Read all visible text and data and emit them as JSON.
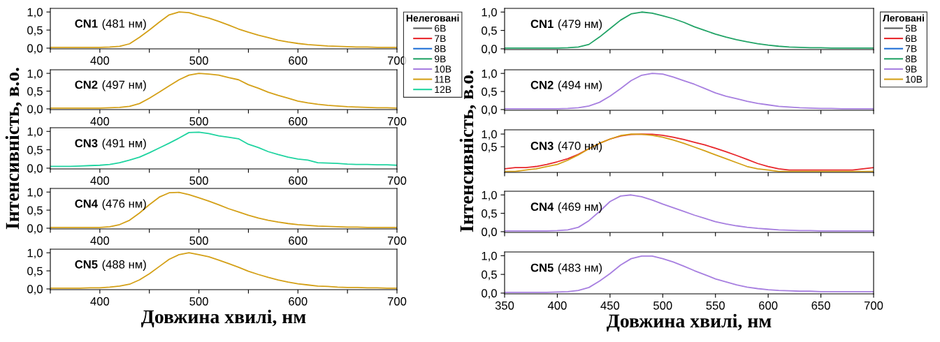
{
  "chart_data": [
    {
      "type": "line",
      "title": "CN1",
      "subtitle": "(481 нм)",
      "legend": "right",
      "legend_title": "Нелеговані",
      "xlim": [
        350,
        700
      ],
      "ylim": [
        -0.02,
        1.1
      ],
      "xticks": [
        400,
        500,
        600,
        700,
        {
          "value": 350,
          "label": null
        },
        {
          "value": 450,
          "label": null
        },
        {
          "value": 550,
          "label": null
        },
        {
          "value": 650,
          "label": null
        }
      ],
      "yticks": [
        {
          "value": 0,
          "label": "0,0"
        },
        {
          "value": 0.5,
          "label": "0,5"
        },
        {
          "value": 1,
          "label": "1,0"
        }
      ],
      "x": [
        350,
        360,
        370,
        380,
        390,
        400,
        410,
        420,
        430,
        440,
        450,
        460,
        470,
        480,
        490,
        500,
        510,
        520,
        530,
        540,
        550,
        560,
        570,
        580,
        590,
        600,
        610,
        620,
        630,
        640,
        650,
        660,
        670,
        680,
        690,
        700
      ],
      "series": [
        {
          "name": "6В",
          "color": "#595959",
          "values": [
            null,
            null,
            null,
            null,
            null,
            null,
            null,
            null,
            null,
            null,
            null,
            null,
            null,
            null,
            null,
            null,
            null,
            null,
            null,
            null,
            null,
            null,
            null,
            null,
            null,
            null,
            null,
            null,
            null,
            null,
            null,
            null,
            null,
            null,
            null,
            null
          ]
        },
        {
          "name": "7В",
          "color": "#e8262b",
          "values": [
            null,
            null,
            null,
            null,
            null,
            null,
            null,
            null,
            null,
            null,
            null,
            null,
            null,
            null,
            null,
            null,
            null,
            null,
            null,
            null,
            null,
            null,
            null,
            null,
            null,
            null,
            null,
            null,
            null,
            null,
            null,
            null,
            null,
            null,
            null,
            null
          ]
        },
        {
          "name": "8В",
          "color": "#1f6fd6",
          "values": [
            null,
            null,
            null,
            null,
            null,
            null,
            null,
            null,
            null,
            null,
            null,
            null,
            null,
            null,
            null,
            null,
            null,
            null,
            null,
            null,
            null,
            null,
            null,
            null,
            null,
            null,
            null,
            null,
            null,
            null,
            null,
            null,
            null,
            null,
            null,
            null
          ]
        },
        {
          "name": "9В",
          "color": "#21a366",
          "values": [
            null,
            null,
            null,
            null,
            null,
            null,
            null,
            null,
            null,
            null,
            null,
            null,
            null,
            null,
            null,
            null,
            null,
            null,
            null,
            null,
            null,
            null,
            null,
            null,
            null,
            null,
            null,
            null,
            null,
            null,
            null,
            null,
            null,
            null,
            null,
            null
          ]
        },
        {
          "name": "10В",
          "color": "#a77fe0",
          "values": [
            null,
            null,
            null,
            null,
            null,
            null,
            null,
            null,
            null,
            null,
            null,
            null,
            null,
            null,
            null,
            null,
            null,
            null,
            null,
            null,
            null,
            null,
            null,
            null,
            null,
            null,
            null,
            null,
            null,
            null,
            null,
            null,
            null,
            null,
            null,
            null
          ]
        },
        {
          "name": "11В",
          "color": "#d4a017",
          "values": [
            0.02,
            0.02,
            0.02,
            0.02,
            0.02,
            0.02,
            0.03,
            0.05,
            0.12,
            0.3,
            0.5,
            0.72,
            0.92,
            1.0,
            0.98,
            0.9,
            0.83,
            0.74,
            0.64,
            0.53,
            0.44,
            0.36,
            0.29,
            0.22,
            0.17,
            0.13,
            0.1,
            0.08,
            0.06,
            0.05,
            0.04,
            0.03,
            0.03,
            0.02,
            0.02,
            0.02
          ]
        },
        {
          "name": "12В",
          "color": "#1fd4a0",
          "values": [
            null,
            null,
            null,
            null,
            null,
            null,
            null,
            null,
            null,
            null,
            null,
            null,
            null,
            null,
            null,
            null,
            null,
            null,
            null,
            null,
            null,
            null,
            null,
            null,
            null,
            null,
            null,
            null,
            null,
            null,
            null,
            null,
            null,
            null,
            null,
            null
          ]
        }
      ]
    },
    {
      "type": "line",
      "title": "CN1",
      "subtitle": "(479 нм)",
      "legend": "right",
      "legend_title": "Леговані",
      "tick_labels": "y",
      "xlim": [
        350,
        700
      ],
      "ylim": [
        -0.02,
        1.1
      ],
      "xticks": [
        350,
        400,
        450,
        500,
        550,
        600,
        650,
        700
      ],
      "yticks": [
        {
          "value": 0,
          "label": "0,0"
        },
        {
          "value": 0.5,
          "label": "0,5"
        },
        {
          "value": 1,
          "label": "1,0"
        }
      ],
      "x": [
        350,
        360,
        370,
        380,
        390,
        400,
        410,
        420,
        430,
        440,
        450,
        460,
        470,
        480,
        490,
        500,
        510,
        520,
        530,
        540,
        550,
        560,
        570,
        580,
        590,
        600,
        610,
        620,
        630,
        640,
        650,
        660,
        670,
        680,
        690,
        700
      ],
      "series": [
        {
          "name": "5В",
          "color": "#595959",
          "values": [
            null,
            null,
            null,
            null,
            null,
            null,
            null,
            null,
            null,
            null,
            null,
            null,
            null,
            null,
            null,
            null,
            null,
            null,
            null,
            null,
            null,
            null,
            null,
            null,
            null,
            null,
            null,
            null,
            null,
            null,
            null,
            null,
            null,
            null,
            null,
            null
          ]
        },
        {
          "name": "6В",
          "color": "#e8262b",
          "values": [
            null,
            null,
            null,
            null,
            null,
            null,
            null,
            null,
            null,
            null,
            null,
            null,
            null,
            null,
            null,
            null,
            null,
            null,
            null,
            null,
            null,
            null,
            null,
            null,
            null,
            null,
            null,
            null,
            null,
            null,
            null,
            null,
            null,
            null,
            null,
            null
          ]
        },
        {
          "name": "7В",
          "color": "#1f6fd6",
          "values": [
            null,
            null,
            null,
            null,
            null,
            null,
            null,
            null,
            null,
            null,
            null,
            null,
            null,
            null,
            null,
            null,
            null,
            null,
            null,
            null,
            null,
            null,
            null,
            null,
            null,
            null,
            null,
            null,
            null,
            null,
            null,
            null,
            null,
            null,
            null,
            null
          ]
        },
        {
          "name": "8В",
          "color": "#21a366",
          "values": [
            0.02,
            0.02,
            0.02,
            0.02,
            0.02,
            0.02,
            0.03,
            0.05,
            0.12,
            0.32,
            0.55,
            0.78,
            0.95,
            1.0,
            0.97,
            0.9,
            0.82,
            0.72,
            0.6,
            0.5,
            0.4,
            0.32,
            0.25,
            0.19,
            0.14,
            0.1,
            0.07,
            0.05,
            0.04,
            0.03,
            0.03,
            0.02,
            0.02,
            0.02,
            0.02,
            0.02
          ]
        },
        {
          "name": "9В",
          "color": "#a77fe0",
          "values": [
            null,
            null,
            null,
            null,
            null,
            null,
            null,
            null,
            null,
            null,
            null,
            null,
            null,
            null,
            null,
            null,
            null,
            null,
            null,
            null,
            null,
            null,
            null,
            null,
            null,
            null,
            null,
            null,
            null,
            null,
            null,
            null,
            null,
            null,
            null,
            null
          ]
        },
        {
          "name": "10В",
          "color": "#d4a017",
          "values": [
            null,
            null,
            null,
            null,
            null,
            null,
            null,
            null,
            null,
            null,
            null,
            null,
            null,
            null,
            null,
            null,
            null,
            null,
            null,
            null,
            null,
            null,
            null,
            null,
            null,
            null,
            null,
            null,
            null,
            null,
            null,
            null,
            null,
            null,
            null,
            null
          ]
        }
      ]
    },
    {
      "type": "line",
      "title": "CN2",
      "subtitle": "(497 нм)",
      "xlim": [
        350,
        700
      ],
      "ylim": [
        -0.02,
        1.1
      ],
      "xticks": [
        400,
        500,
        600,
        700,
        {
          "value": 350,
          "label": null
        },
        {
          "value": 450,
          "label": null
        },
        {
          "value": 550,
          "label": null
        },
        {
          "value": 650,
          "label": null
        }
      ],
      "yticks": [
        {
          "value": 0,
          "label": "0,0"
        },
        {
          "value": 0.5,
          "label": "0,5"
        },
        {
          "value": 1,
          "label": "1,0"
        }
      ],
      "x": [
        350,
        360,
        370,
        380,
        390,
        400,
        410,
        420,
        430,
        440,
        450,
        460,
        470,
        480,
        490,
        500,
        510,
        520,
        530,
        540,
        550,
        560,
        570,
        580,
        590,
        600,
        610,
        620,
        630,
        640,
        650,
        660,
        670,
        680,
        690,
        700
      ],
      "series": [
        {
          "color": "#d4a017",
          "values": [
            0.02,
            0.02,
            0.02,
            0.02,
            0.02,
            0.02,
            0.03,
            0.04,
            0.07,
            0.15,
            0.3,
            0.47,
            0.65,
            0.82,
            0.95,
            1.0,
            0.98,
            0.95,
            0.88,
            0.82,
            0.68,
            0.58,
            0.47,
            0.38,
            0.3,
            0.22,
            0.17,
            0.13,
            0.1,
            0.08,
            0.06,
            0.05,
            0.04,
            0.03,
            0.03,
            0.02
          ]
        }
      ]
    },
    {
      "type": "line",
      "title": "CN2",
      "subtitle": "(494 нм)",
      "tick_labels": "y",
      "xlim": [
        350,
        700
      ],
      "ylim": [
        -0.02,
        1.1
      ],
      "xticks": [
        350,
        400,
        450,
        500,
        550,
        600,
        650,
        700
      ],
      "yticks": [
        {
          "value": 0,
          "label": "0,0"
        },
        {
          "value": 0.5,
          "label": "0,5"
        },
        {
          "value": 1,
          "label": "1,0"
        }
      ],
      "x": [
        350,
        360,
        370,
        380,
        390,
        400,
        410,
        420,
        430,
        440,
        450,
        460,
        470,
        480,
        490,
        500,
        510,
        520,
        530,
        540,
        550,
        560,
        570,
        580,
        590,
        600,
        610,
        620,
        630,
        640,
        650,
        660,
        670,
        680,
        690,
        700
      ],
      "series": [
        {
          "color": "#a77fe0",
          "values": [
            0.02,
            0.02,
            0.02,
            0.02,
            0.02,
            0.02,
            0.03,
            0.05,
            0.1,
            0.2,
            0.37,
            0.58,
            0.8,
            0.95,
            1.0,
            0.98,
            0.9,
            0.8,
            0.7,
            0.58,
            0.46,
            0.37,
            0.3,
            0.23,
            0.17,
            0.13,
            0.09,
            0.07,
            0.05,
            0.04,
            0.03,
            0.03,
            0.02,
            0.02,
            0.02,
            0.02
          ]
        }
      ]
    },
    {
      "type": "line",
      "title": "CN3",
      "subtitle": "(491 нм)",
      "ylabel": "Інтенсивність, в.о.",
      "xlim": [
        350,
        700
      ],
      "ylim": [
        -0.02,
        1.1
      ],
      "xticks": [
        400,
        500,
        600,
        700,
        {
          "value": 350,
          "label": null
        },
        {
          "value": 450,
          "label": null
        },
        {
          "value": 550,
          "label": null
        },
        {
          "value": 650,
          "label": null
        }
      ],
      "yticks": [
        {
          "value": 0,
          "label": "0,0"
        },
        {
          "value": 0.5,
          "label": "0,5"
        },
        {
          "value": 1,
          "label": "1,0"
        }
      ],
      "x": [
        350,
        360,
        370,
        380,
        390,
        400,
        410,
        420,
        430,
        440,
        450,
        460,
        470,
        480,
        490,
        500,
        510,
        520,
        530,
        540,
        550,
        560,
        570,
        580,
        590,
        600,
        610,
        620,
        630,
        640,
        650,
        660,
        670,
        680,
        690,
        700
      ],
      "series": [
        {
          "color": "#1fd4a0",
          "values": [
            0.05,
            0.05,
            0.05,
            0.06,
            0.07,
            0.08,
            0.1,
            0.15,
            0.22,
            0.3,
            0.42,
            0.55,
            0.68,
            0.82,
            0.97,
            0.98,
            0.94,
            0.88,
            0.84,
            0.8,
            0.65,
            0.56,
            0.45,
            0.37,
            0.3,
            0.25,
            0.22,
            0.15,
            0.14,
            0.13,
            0.11,
            0.1,
            0.1,
            0.09,
            0.09,
            0.08
          ]
        }
      ]
    },
    {
      "type": "line",
      "title": "CN3",
      "subtitle": "(470 нм)",
      "ylabel": "Інтенсивність, в.о.",
      "log": "y",
      "tick_labels": "y",
      "xlim": [
        350,
        700
      ],
      "ylim": [
        0.123,
        1.26
      ],
      "xticks": [
        350,
        400,
        450,
        500,
        550,
        600,
        650,
        700
      ],
      "yticks": [
        {
          "value": 0.5,
          "label": "0,5"
        },
        {
          "value": 1,
          "label": "1,0"
        }
      ],
      "x": [
        350,
        360,
        370,
        380,
        390,
        400,
        410,
        420,
        430,
        440,
        450,
        460,
        470,
        480,
        490,
        500,
        510,
        520,
        530,
        540,
        550,
        560,
        570,
        580,
        590,
        600,
        610,
        620,
        630,
        640,
        650,
        660,
        670,
        680,
        690,
        700
      ],
      "series": [
        {
          "color": "#e8262b",
          "values": [
            0.15,
            0.16,
            0.16,
            0.17,
            0.19,
            0.22,
            0.26,
            0.33,
            0.45,
            0.6,
            0.76,
            0.9,
            0.98,
            1.0,
            0.99,
            0.93,
            0.84,
            0.74,
            0.64,
            0.55,
            0.46,
            0.38,
            0.31,
            0.25,
            0.2,
            0.17,
            0.15,
            0.14,
            0.14,
            0.14,
            0.14,
            0.14,
            0.14,
            0.14,
            0.15,
            0.16
          ]
        },
        {
          "color": "#d4a017",
          "values": [
            0.13,
            0.13,
            0.14,
            0.15,
            0.17,
            0.19,
            0.24,
            0.32,
            0.45,
            0.6,
            0.76,
            0.92,
            1.0,
            0.99,
            0.93,
            0.84,
            0.72,
            0.6,
            0.49,
            0.4,
            0.32,
            0.26,
            0.21,
            0.17,
            0.15,
            0.14,
            0.13,
            0.13,
            0.13,
            0.13,
            0.13,
            0.13,
            0.13,
            0.13,
            0.13,
            0.13
          ]
        }
      ]
    },
    {
      "type": "line",
      "title": "CN4",
      "subtitle": "(476 нм)",
      "xlim": [
        350,
        700
      ],
      "ylim": [
        -0.02,
        1.1
      ],
      "xticks": [
        400,
        500,
        600,
        700,
        {
          "value": 350,
          "label": null
        },
        {
          "value": 450,
          "label": null
        },
        {
          "value": 550,
          "label": null
        },
        {
          "value": 650,
          "label": null
        }
      ],
      "yticks": [
        {
          "value": 0,
          "label": "0,0"
        },
        {
          "value": 0.5,
          "label": "0,5"
        },
        {
          "value": 1,
          "label": "1,0"
        }
      ],
      "x": [
        350,
        360,
        370,
        380,
        390,
        400,
        410,
        420,
        430,
        440,
        450,
        460,
        470,
        480,
        490,
        500,
        510,
        520,
        530,
        540,
        550,
        560,
        570,
        580,
        590,
        600,
        610,
        620,
        630,
        640,
        650,
        660,
        670,
        680,
        690,
        700
      ],
      "series": [
        {
          "color": "#d4a017",
          "values": [
            0.02,
            0.02,
            0.02,
            0.02,
            0.02,
            0.02,
            0.04,
            0.1,
            0.22,
            0.42,
            0.65,
            0.86,
            0.98,
            0.99,
            0.93,
            0.84,
            0.75,
            0.65,
            0.54,
            0.45,
            0.36,
            0.28,
            0.22,
            0.17,
            0.13,
            0.1,
            0.08,
            0.06,
            0.05,
            0.04,
            0.03,
            0.03,
            0.02,
            0.02,
            0.02,
            0.02
          ]
        }
      ]
    },
    {
      "type": "line",
      "title": "CN4",
      "subtitle": "(469 нм)",
      "tick_labels": "y",
      "xlim": [
        350,
        700
      ],
      "ylim": [
        -0.02,
        1.1
      ],
      "xticks": [
        350,
        400,
        450,
        500,
        550,
        600,
        650,
        700
      ],
      "yticks": [
        {
          "value": 0,
          "label": "0,0"
        },
        {
          "value": 0.5,
          "label": "0,5"
        },
        {
          "value": 1,
          "label": "1,0"
        }
      ],
      "x": [
        350,
        360,
        370,
        380,
        390,
        400,
        410,
        420,
        430,
        440,
        450,
        460,
        470,
        480,
        490,
        500,
        510,
        520,
        530,
        540,
        550,
        560,
        570,
        580,
        590,
        600,
        610,
        620,
        630,
        640,
        650,
        660,
        670,
        680,
        690,
        700
      ],
      "series": [
        {
          "color": "#a77fe0",
          "values": [
            0.02,
            0.02,
            0.02,
            0.02,
            0.02,
            0.03,
            0.05,
            0.12,
            0.3,
            0.55,
            0.82,
            0.97,
            1.0,
            0.95,
            0.86,
            0.75,
            0.65,
            0.55,
            0.45,
            0.36,
            0.27,
            0.21,
            0.16,
            0.12,
            0.09,
            0.07,
            0.05,
            0.04,
            0.03,
            0.03,
            0.02,
            0.02,
            0.02,
            0.02,
            0.02,
            0.02
          ]
        }
      ]
    },
    {
      "type": "line",
      "title": "CN5",
      "subtitle": "(488 нм)",
      "xlabel": "Довжина хвилі, нм",
      "xlim": [
        350,
        700
      ],
      "ylim": [
        -0.02,
        1.1
      ],
      "xticks": [
        400,
        500,
        600,
        700,
        {
          "value": 350,
          "label": null
        },
        {
          "value": 450,
          "label": null
        },
        {
          "value": 550,
          "label": null
        },
        {
          "value": 650,
          "label": null
        }
      ],
      "yticks": [
        {
          "value": 0,
          "label": "0,0"
        },
        {
          "value": 0.5,
          "label": "0,5"
        },
        {
          "value": 1,
          "label": "1,0"
        }
      ],
      "x": [
        350,
        360,
        370,
        380,
        390,
        400,
        410,
        420,
        430,
        440,
        450,
        460,
        470,
        480,
        490,
        500,
        510,
        520,
        530,
        540,
        550,
        560,
        570,
        580,
        590,
        600,
        610,
        620,
        630,
        640,
        650,
        660,
        670,
        680,
        690,
        700
      ],
      "series": [
        {
          "color": "#d4a017",
          "values": [
            0.02,
            0.02,
            0.02,
            0.02,
            0.03,
            0.03,
            0.05,
            0.08,
            0.13,
            0.25,
            0.42,
            0.62,
            0.82,
            0.95,
            1.0,
            0.95,
            0.89,
            0.8,
            0.7,
            0.6,
            0.49,
            0.4,
            0.32,
            0.25,
            0.19,
            0.14,
            0.11,
            0.08,
            0.07,
            0.05,
            0.04,
            0.04,
            0.03,
            0.03,
            0.02,
            0.02
          ]
        }
      ]
    },
    {
      "type": "line",
      "title": "CN5",
      "subtitle": "(483 нм)",
      "xlabel": "Довжина хвилі, нм",
      "xlim": [
        350,
        700
      ],
      "ylim": [
        -0.02,
        1.1
      ],
      "xticks": [
        350,
        400,
        450,
        500,
        550,
        600,
        650,
        700
      ],
      "yticks": [
        {
          "value": 0,
          "label": "0,0"
        },
        {
          "value": 0.5,
          "label": "0,5"
        },
        {
          "value": 1,
          "label": "1,0"
        }
      ],
      "x": [
        350,
        360,
        370,
        380,
        390,
        400,
        410,
        420,
        430,
        440,
        450,
        460,
        470,
        480,
        490,
        500,
        510,
        520,
        530,
        540,
        550,
        560,
        570,
        580,
        590,
        600,
        610,
        620,
        630,
        640,
        650,
        660,
        670,
        680,
        690,
        700
      ],
      "series": [
        {
          "color": "#a77fe0",
          "values": [
            0.02,
            0.02,
            0.02,
            0.02,
            0.02,
            0.03,
            0.04,
            0.07,
            0.15,
            0.32,
            0.52,
            0.75,
            0.92,
            0.99,
            0.99,
            0.92,
            0.83,
            0.72,
            0.6,
            0.49,
            0.38,
            0.3,
            0.22,
            0.16,
            0.12,
            0.09,
            0.07,
            0.06,
            0.05,
            0.05,
            0.04,
            0.04,
            0.04,
            0.04,
            0.04,
            0.04
          ]
        }
      ]
    }
  ]
}
